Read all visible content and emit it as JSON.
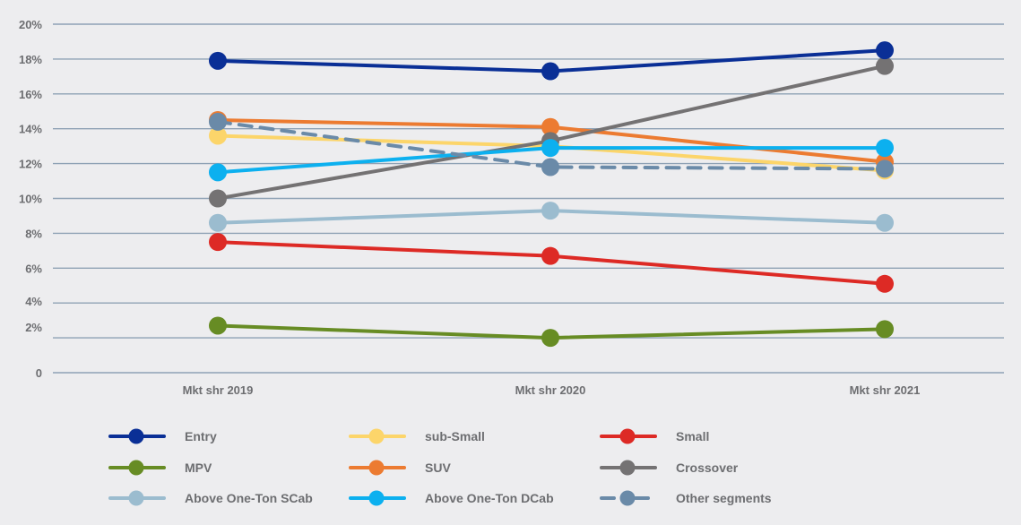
{
  "chart_data": {
    "type": "line",
    "title": "",
    "xlabel": "",
    "ylabel": "",
    "categories": [
      "Mkt shr 2019",
      "Mkt shr 2020",
      "Mkt shr 2021"
    ],
    "ylim": [
      0,
      20
    ],
    "yticks": [
      0,
      2,
      4,
      6,
      8,
      10,
      12,
      14,
      16,
      18,
      20
    ],
    "ytick_labels": [
      "0",
      "2%",
      "4%",
      "6%",
      "8%",
      "10%",
      "12%",
      "14%",
      "16%",
      "18%",
      "20%"
    ],
    "grid": true,
    "legend_position": "bottom",
    "series": [
      {
        "name": "Entry",
        "color": "#0a2f96",
        "dashed": false,
        "values": [
          17.9,
          17.3,
          18.5
        ]
      },
      {
        "name": "sub-Small",
        "color": "#fcd56a",
        "dashed": false,
        "values": [
          13.6,
          13.0,
          11.6
        ]
      },
      {
        "name": "Small",
        "color": "#dd2a25",
        "dashed": false,
        "values": [
          7.5,
          6.7,
          5.1
        ]
      },
      {
        "name": "MPV",
        "color": "#678c24",
        "dashed": false,
        "values": [
          2.7,
          2.0,
          2.5
        ]
      },
      {
        "name": "SUV",
        "color": "#ec7b31",
        "dashed": false,
        "values": [
          14.5,
          14.1,
          12.1
        ]
      },
      {
        "name": "Crossover",
        "color": "#747273",
        "dashed": false,
        "values": [
          10.0,
          13.3,
          17.6
        ]
      },
      {
        "name": "Above One-Ton SCab",
        "color": "#9bbccf",
        "dashed": false,
        "values": [
          8.6,
          9.3,
          8.6
        ]
      },
      {
        "name": "Above One-Ton DCab",
        "color": "#0cb0ef",
        "dashed": false,
        "values": [
          11.5,
          12.9,
          12.9
        ]
      },
      {
        "name": "Other segments",
        "color": "#6a8aa8",
        "dashed": true,
        "values": [
          14.4,
          11.8,
          11.7
        ]
      }
    ]
  }
}
